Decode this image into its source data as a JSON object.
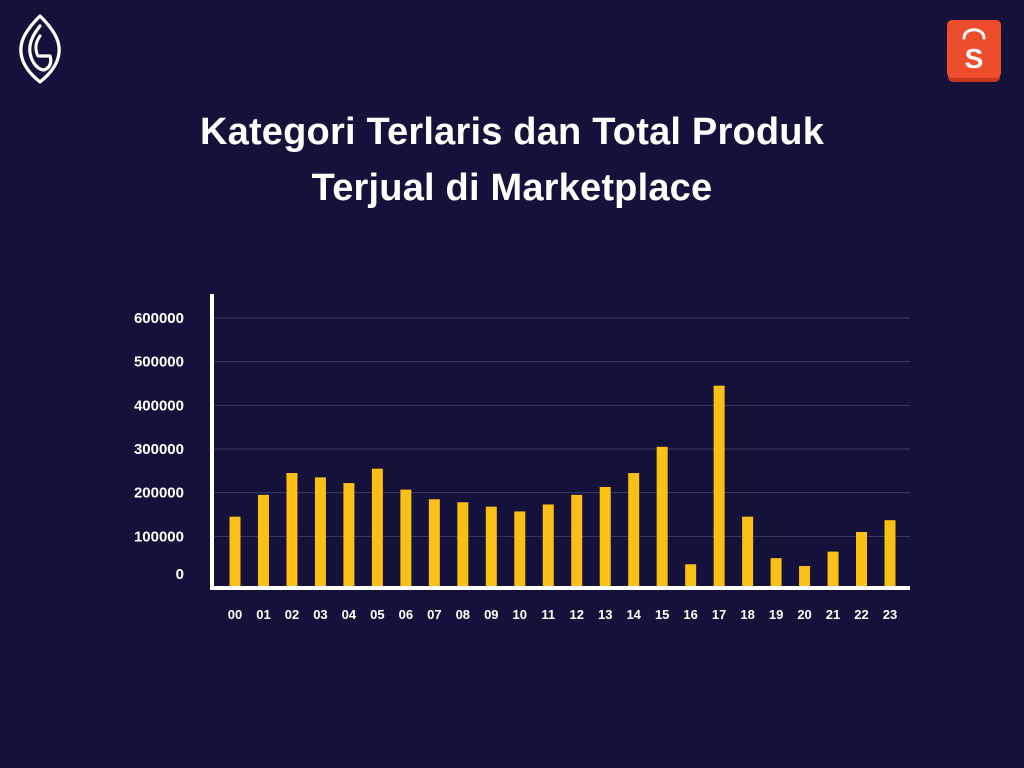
{
  "brand": {
    "left_logo_icon": "leaf-g-logo-icon",
    "right_logo_icon": "shopping-bag-s-icon",
    "right_logo_letter": "S",
    "right_logo_color": "#ee4d2d"
  },
  "title_lines": [
    "Kategori Terlaris dan Total Produk",
    "Terjual di Marketplace"
  ],
  "colors": {
    "background": "#14123a",
    "bar": "#fbbf16",
    "axis": "#ffffff",
    "grid": "#3b3a63",
    "text": "#ffffff"
  },
  "chart_data": {
    "type": "bar",
    "title": "Kategori Terlaris dan Total Produk Terjual di Marketplace",
    "xlabel": "",
    "ylabel": "",
    "categories": [
      "00",
      "01",
      "02",
      "03",
      "04",
      "05",
      "06",
      "07",
      "08",
      "09",
      "10",
      "11",
      "12",
      "13",
      "14",
      "15",
      "16",
      "17",
      "18",
      "19",
      "20",
      "21",
      "22",
      "23"
    ],
    "values": [
      145000,
      195000,
      245000,
      235000,
      222000,
      255000,
      207000,
      185000,
      178000,
      168000,
      157000,
      173000,
      195000,
      213000,
      245000,
      305000,
      36000,
      445000,
      145000,
      50000,
      32000,
      65000,
      110000,
      137000
    ],
    "ylim": [
      0,
      600000
    ],
    "yticks": [
      0,
      100000,
      200000,
      300000,
      400000,
      500000,
      600000
    ],
    "ytick_labels": [
      "0",
      "100000",
      "200000",
      "300000",
      "400000",
      "500000",
      "600000"
    ],
    "grid": true,
    "legend": "none"
  }
}
